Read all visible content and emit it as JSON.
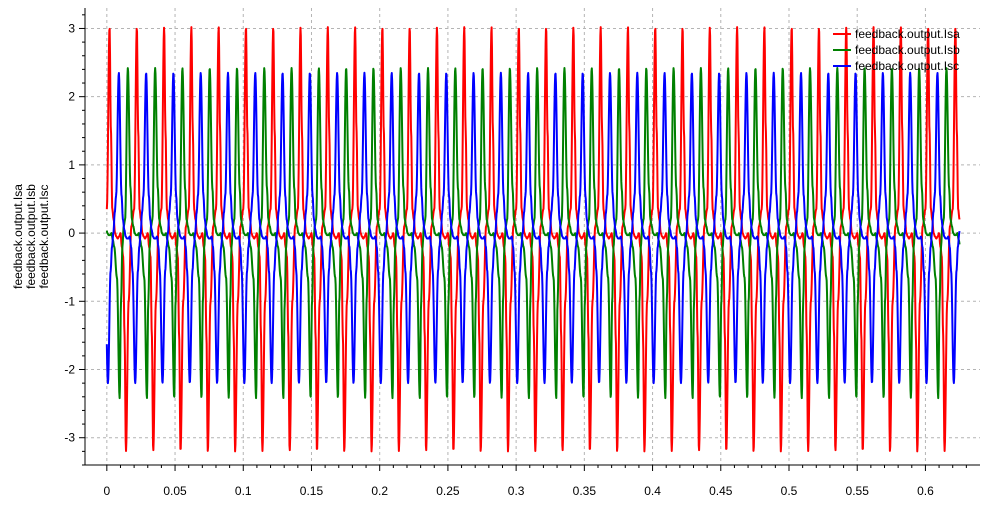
{
  "chart_data": {
    "type": "line",
    "title": "",
    "xlabel": "",
    "ylabel": [
      "feedback.output.Isa",
      "feedback.output.Isb",
      "feedback.output.Isc"
    ],
    "xlim": [
      -0.016,
      0.64
    ],
    "ylim": [
      -3.4,
      3.3
    ],
    "x_ticks": [
      "0",
      "0.05",
      "0.1",
      "0.15",
      "0.2",
      "0.25",
      "0.3",
      "0.35",
      "0.4",
      "0.45",
      "0.5",
      "0.55",
      "0.6"
    ],
    "x_tick_values": [
      0,
      0.05,
      0.1,
      0.15,
      0.2,
      0.25,
      0.3,
      0.35,
      0.4,
      0.45,
      0.5,
      0.55,
      0.6
    ],
    "y_ticks": [
      "-3",
      "-2",
      "-1",
      "0",
      "1",
      "2",
      "3"
    ],
    "y_tick_values": [
      -3,
      -2,
      -1,
      0,
      1,
      2,
      3
    ],
    "grid": true,
    "legend_position": "top-right",
    "period": 0.02,
    "x_range": [
      0,
      0.625
    ],
    "series": [
      {
        "name": "feedback.output.Isa",
        "color": "#ff0000",
        "wave_phases": [
          0.0,
          0.1,
          0.15,
          0.2,
          0.25,
          0.3,
          0.35,
          0.4,
          0.45,
          0.5,
          0.55,
          0.6,
          0.65,
          0.7,
          0.8,
          0.9,
          1.0
        ],
        "wave_values": [
          0.35,
          3.02,
          1.5,
          0.35,
          0.2,
          0.0,
          -0.05,
          -0.08,
          -0.05,
          0.0,
          -0.2,
          -0.35,
          -1.5,
          -3.2,
          -1.0,
          0.1,
          0.35
        ],
        "phase_offset": 0.0
      },
      {
        "name": "feedback.output.Isb",
        "color": "#008000",
        "wave_phases": [
          0.0,
          0.1,
          0.2,
          0.25,
          0.3,
          0.35,
          0.4,
          0.45,
          0.5,
          0.55,
          0.6,
          0.7,
          0.8,
          0.85,
          0.9,
          0.95,
          1.0
        ],
        "wave_values": [
          0.2,
          2.42,
          0.65,
          0.2,
          0.1,
          0.0,
          -0.03,
          -0.03,
          0.0,
          -0.1,
          -0.2,
          -0.65,
          -2.42,
          -1.0,
          -0.2,
          0.1,
          0.2
        ],
        "phase_offset": 0.33
      },
      {
        "name": "feedback.output.Isc",
        "color": "#0000ff",
        "wave_phases": [
          0.0,
          0.1,
          0.2,
          0.25,
          0.3,
          0.35,
          0.4,
          0.45,
          0.5,
          0.55,
          0.6,
          0.7,
          0.8,
          0.85,
          0.9,
          0.95,
          1.0
        ],
        "wave_values": [
          0.55,
          2.35,
          0.55,
          0.2,
          0.05,
          -0.05,
          -0.08,
          -0.08,
          -0.05,
          -0.2,
          -0.55,
          -2.2,
          -0.55,
          -0.2,
          0.0,
          0.3,
          0.55
        ],
        "phase_offset": 0.66
      }
    ]
  }
}
